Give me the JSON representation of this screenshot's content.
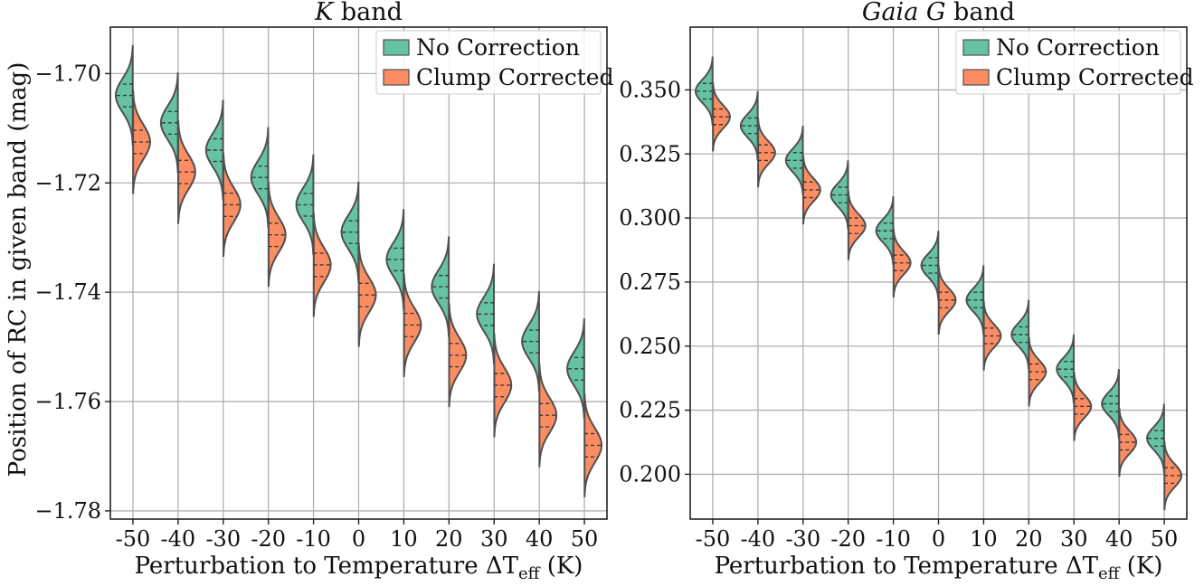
{
  "figure": {
    "xlabel": "Perturbation to Temperature ΔT",
    "xlabel_sub": "eff",
    "xlabel_unit": " (K)",
    "ylabel": "Position of RC in given band (mag)"
  },
  "chart_data": [
    {
      "type": "violin",
      "title_italic": "K",
      "title_rest": " band",
      "categories": [
        "-50",
        "-40",
        "-30",
        "-20",
        "-10",
        "0",
        "10",
        "20",
        "30",
        "40",
        "50"
      ],
      "ylim": [
        -1.7815,
        -1.6915
      ],
      "yticks": [
        -1.7,
        -1.72,
        -1.74,
        -1.76,
        -1.78
      ],
      "yticklabels": [
        "−1.70",
        "−1.72",
        "−1.74",
        "−1.76",
        "−1.78"
      ],
      "grid": true,
      "legend_position": "top-right",
      "series": [
        {
          "name": "No Correction",
          "color": "#66c2a5",
          "side": "left",
          "values": [
            -1.704,
            -1.709,
            -1.714,
            -1.719,
            -1.724,
            -1.729,
            -1.734,
            -1.739,
            -1.744,
            -1.749,
            -1.754
          ],
          "spread": 0.0092
        },
        {
          "name": "Clump Corrected",
          "color": "#fc8d62",
          "side": "right",
          "values": [
            -1.7125,
            -1.718,
            -1.724,
            -1.7295,
            -1.735,
            -1.7405,
            -1.746,
            -1.7515,
            -1.757,
            -1.7625,
            -1.768
          ],
          "spread": 0.0095
        }
      ]
    },
    {
      "type": "violin",
      "title_italic": "Gaia G",
      "title_rest": " band",
      "categories": [
        "-50",
        "-40",
        "-30",
        "-20",
        "-10",
        "0",
        "10",
        "20",
        "30",
        "40",
        "50"
      ],
      "ylim": [
        0.1825,
        0.3745
      ],
      "yticks": [
        0.2,
        0.225,
        0.25,
        0.275,
        0.3,
        0.325,
        0.35
      ],
      "yticklabels": [
        "0.200",
        "0.225",
        "0.250",
        "0.275",
        "0.300",
        "0.325",
        "0.350"
      ],
      "grid": true,
      "legend_position": "top-right",
      "series": [
        {
          "name": "No Correction",
          "color": "#66c2a5",
          "side": "left",
          "values": [
            0.3495,
            0.336,
            0.3225,
            0.309,
            0.295,
            0.2815,
            0.268,
            0.2545,
            0.241,
            0.2275,
            0.214
          ],
          "spread": 0.0135
        },
        {
          "name": "Clump Corrected",
          "color": "#fc8d62",
          "side": "right",
          "values": [
            0.3395,
            0.3255,
            0.311,
            0.297,
            0.2825,
            0.268,
            0.254,
            0.24,
            0.2265,
            0.2125,
            0.1995
          ],
          "spread": 0.0135
        }
      ]
    }
  ]
}
